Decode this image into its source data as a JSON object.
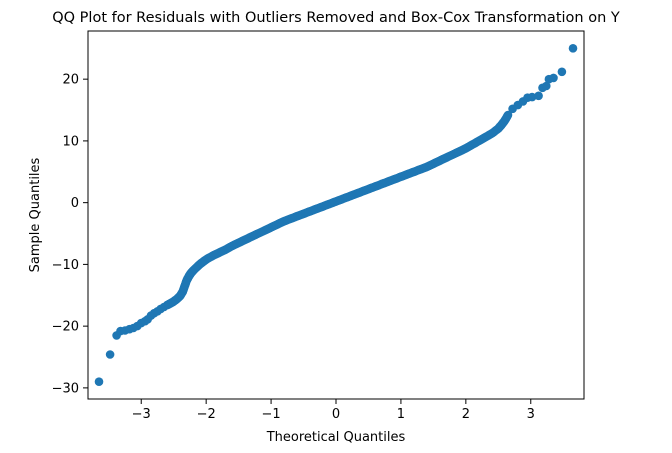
{
  "chart_data": {
    "type": "scatter",
    "title": "QQ Plot for Residuals with Outliers Removed and Box-Cox Transformation on Y",
    "xlabel": "Theoretical Quantiles",
    "ylabel": "Sample Quantiles",
    "xlim": [
      -3.82,
      3.82
    ],
    "ylim": [
      -31.8,
      27.8
    ],
    "xticks": [
      -3,
      -2,
      -1,
      0,
      1,
      2,
      3
    ],
    "xtick_labels": [
      "−3",
      "−2",
      "−1",
      "0",
      "1",
      "2",
      "3"
    ],
    "yticks": [
      -30,
      -20,
      -10,
      0,
      10,
      20
    ],
    "ytick_labels": [
      "−30",
      "−20",
      "−10",
      "0",
      "10",
      "20"
    ],
    "grid": false,
    "legend": "none",
    "marker_color": "#1f77b4",
    "points": [
      [
        -3.65,
        -29.0
      ],
      [
        -3.48,
        -24.6
      ],
      [
        -3.38,
        -21.5
      ],
      [
        -3.32,
        -20.8
      ],
      [
        -3.25,
        -20.7
      ],
      [
        -3.18,
        -20.5
      ],
      [
        -3.12,
        -20.3
      ],
      [
        -3.06,
        -20.0
      ],
      [
        -3.0,
        -19.5
      ],
      [
        -2.94,
        -19.2
      ],
      [
        -2.9,
        -18.9
      ],
      [
        -2.85,
        -18.3
      ],
      [
        -2.8,
        -17.9
      ],
      [
        -2.75,
        -17.6
      ],
      [
        -2.7,
        -17.2
      ],
      [
        -2.65,
        -16.9
      ],
      [
        -2.6,
        -16.6
      ],
      [
        -2.55,
        -16.3
      ],
      [
        -2.5,
        -16.0
      ],
      [
        -2.45,
        -15.6
      ],
      [
        -2.4,
        -15.1
      ],
      [
        -2.36,
        -14.4
      ],
      [
        -2.33,
        -13.5
      ],
      [
        -2.3,
        -12.6
      ],
      [
        -2.27,
        -12.0
      ],
      [
        -2.24,
        -11.5
      ],
      [
        -2.2,
        -11.0
      ],
      [
        -2.15,
        -10.5
      ],
      [
        -2.1,
        -10.0
      ],
      [
        -2.05,
        -9.6
      ],
      [
        -2.0,
        -9.2
      ],
      [
        -1.9,
        -8.6
      ],
      [
        -1.8,
        -8.1
      ],
      [
        -1.7,
        -7.6
      ],
      [
        -1.6,
        -7.0
      ],
      [
        -1.5,
        -6.5
      ],
      [
        -1.4,
        -6.0
      ],
      [
        -1.3,
        -5.5
      ],
      [
        -1.2,
        -5.0
      ],
      [
        -1.1,
        -4.5
      ],
      [
        -1.0,
        -4.0
      ],
      [
        -0.9,
        -3.5
      ],
      [
        -0.8,
        -3.0
      ],
      [
        -0.7,
        -2.6
      ],
      [
        -0.6,
        -2.2
      ],
      [
        -0.5,
        -1.8
      ],
      [
        -0.4,
        -1.4
      ],
      [
        -0.3,
        -1.0
      ],
      [
        -0.2,
        -0.6
      ],
      [
        -0.1,
        -0.2
      ],
      [
        0.0,
        0.2
      ],
      [
        0.1,
        0.6
      ],
      [
        0.2,
        1.0
      ],
      [
        0.3,
        1.4
      ],
      [
        0.4,
        1.8
      ],
      [
        0.5,
        2.2
      ],
      [
        0.6,
        2.6
      ],
      [
        0.7,
        3.0
      ],
      [
        0.8,
        3.4
      ],
      [
        0.9,
        3.8
      ],
      [
        1.0,
        4.2
      ],
      [
        1.1,
        4.6
      ],
      [
        1.2,
        5.0
      ],
      [
        1.3,
        5.4
      ],
      [
        1.4,
        5.8
      ],
      [
        1.5,
        6.3
      ],
      [
        1.6,
        6.8
      ],
      [
        1.7,
        7.3
      ],
      [
        1.8,
        7.8
      ],
      [
        1.9,
        8.3
      ],
      [
        2.0,
        8.8
      ],
      [
        2.1,
        9.4
      ],
      [
        2.2,
        10.0
      ],
      [
        2.3,
        10.6
      ],
      [
        2.4,
        11.2
      ],
      [
        2.5,
        12.0
      ],
      [
        2.55,
        12.6
      ],
      [
        2.6,
        13.3
      ],
      [
        2.65,
        14.2
      ],
      [
        2.72,
        15.2
      ],
      [
        2.8,
        15.8
      ],
      [
        2.88,
        16.4
      ],
      [
        2.95,
        17.0
      ],
      [
        3.02,
        17.1
      ],
      [
        3.12,
        17.3
      ],
      [
        3.18,
        18.6
      ],
      [
        3.24,
        18.9
      ],
      [
        3.28,
        20.0
      ],
      [
        3.35,
        20.2
      ],
      [
        3.48,
        21.2
      ],
      [
        3.65,
        25.0
      ]
    ]
  }
}
